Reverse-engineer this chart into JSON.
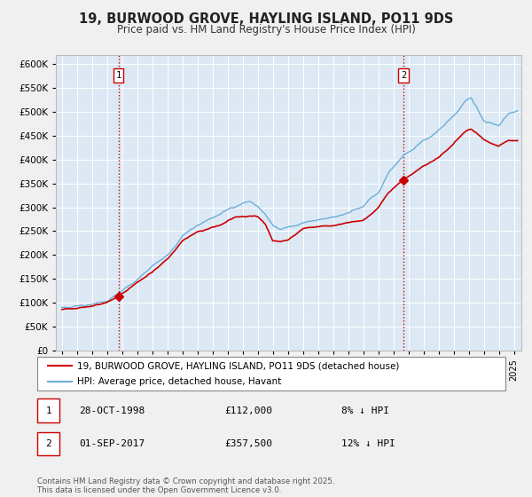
{
  "title": "19, BURWOOD GROVE, HAYLING ISLAND, PO11 9DS",
  "subtitle": "Price paid vs. HM Land Registry's House Price Index (HPI)",
  "hpi_label": "HPI: Average price, detached house, Havant",
  "price_label": "19, BURWOOD GROVE, HAYLING ISLAND, PO11 9DS (detached house)",
  "sale1_date": "28-OCT-1998",
  "sale1_price": 112000,
  "sale1_pct": "8% ↓ HPI",
  "sale2_date": "01-SEP-2017",
  "sale2_price": 357500,
  "sale2_pct": "12% ↓ HPI",
  "hpi_color": "#6baed6",
  "price_color": "#cc0000",
  "vline_color": "#cc0000",
  "plot_bg": "#dce9f5",
  "grid_color": "#ffffff",
  "fig_bg": "#f0f0f0",
  "ylim": [
    0,
    620000
  ],
  "yticks": [
    0,
    50000,
    100000,
    150000,
    200000,
    250000,
    300000,
    350000,
    400000,
    450000,
    500000,
    550000,
    600000
  ],
  "footer": "Contains HM Land Registry data © Crown copyright and database right 2025.\nThis data is licensed under the Open Government Licence v3.0.",
  "sale1_month_idx": 45,
  "sale2_month_idx": 272
}
